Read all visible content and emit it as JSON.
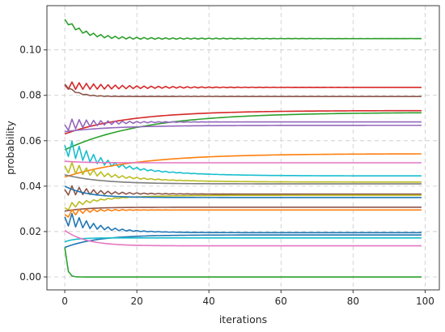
{
  "chart_data": {
    "type": "line",
    "title": "",
    "xlabel": "iterations",
    "ylabel": "probability",
    "xlim": [
      -4.95,
      103.95
    ],
    "ylim": [
      -0.0057,
      0.1195
    ],
    "x_ticks": [
      0,
      20,
      40,
      60,
      80,
      100
    ],
    "x_tick_labels": [
      "0",
      "20",
      "40",
      "60",
      "80",
      "100"
    ],
    "y_ticks": [
      0.0,
      0.02,
      0.04,
      0.06,
      0.08,
      0.1
    ],
    "y_tick_labels": [
      "0.00",
      "0.02",
      "0.04",
      "0.06",
      "0.08",
      "0.10"
    ],
    "grid": "dashed",
    "legend": "none",
    "x": {
      "start": 0,
      "end": 99,
      "step": 1
    },
    "series": [
      {
        "color": "#2ca02c",
        "start": 0.1135,
        "end": 0.105,
        "tau": 5,
        "osc": 0.0009,
        "oscDecay": 25
      },
      {
        "color": "#d62728",
        "start": 0.0845,
        "end": 0.0835,
        "tau": 8,
        "osc": 0.0018,
        "oscDecay": 18
      },
      {
        "color": "#8c564b",
        "start": 0.085,
        "end": 0.0795,
        "tau": 3,
        "osc": 0.0004,
        "oscDecay": 8
      },
      {
        "color": "#d62728",
        "start": 0.063,
        "end": 0.0733,
        "tau": 18,
        "osc": 0.0,
        "oscDecay": 1
      },
      {
        "color": "#2ca02c",
        "start": 0.056,
        "end": 0.0725,
        "tau": 22,
        "osc": 0.0,
        "oscDecay": 1
      },
      {
        "color": "#9467bd",
        "start": 0.067,
        "end": 0.0683,
        "tau": 10,
        "osc": 0.0028,
        "oscDecay": 10
      },
      {
        "color": "#9467bd",
        "start": 0.064,
        "end": 0.0668,
        "tau": 14,
        "osc": 0.0,
        "oscDecay": 1
      },
      {
        "color": "#17becf",
        "start": 0.058,
        "end": 0.0445,
        "tau": 14,
        "osc": 0.0045,
        "oscDecay": 9
      },
      {
        "color": "#ff7f0e",
        "start": 0.044,
        "end": 0.0543,
        "tau": 20,
        "osc": 0.0,
        "oscDecay": 1
      },
      {
        "color": "#e377c2",
        "start": 0.051,
        "end": 0.0503,
        "tau": 5,
        "osc": 0.0,
        "oscDecay": 1
      },
      {
        "color": "#bcbd22",
        "start": 0.049,
        "end": 0.0418,
        "tau": 14,
        "osc": 0.003,
        "oscDecay": 9
      },
      {
        "color": "#7f7f7f",
        "start": 0.045,
        "end": 0.041,
        "tau": 10,
        "osc": 0.0,
        "oscDecay": 1
      },
      {
        "color": "#8c564b",
        "start": 0.0385,
        "end": 0.0365,
        "tau": 10,
        "osc": 0.0025,
        "oscDecay": 9
      },
      {
        "color": "#bcbd22",
        "start": 0.0305,
        "end": 0.036,
        "tau": 10,
        "osc": 0.0018,
        "oscDecay": 6
      },
      {
        "color": "#1f77b4",
        "start": 0.04,
        "end": 0.035,
        "tau": 6,
        "osc": 0.0,
        "oscDecay": 1
      },
      {
        "color": "#8c564b",
        "start": 0.029,
        "end": 0.0307,
        "tau": 6,
        "osc": 0.0,
        "oscDecay": 1
      },
      {
        "color": "#ff7f0e",
        "start": 0.0275,
        "end": 0.0295,
        "tau": 4,
        "osc": 0.0018,
        "oscDecay": 7
      },
      {
        "color": "#1f77b4",
        "start": 0.0265,
        "end": 0.0195,
        "tau": 9,
        "osc": 0.0038,
        "oscDecay": 7
      },
      {
        "color": "#1f77b4",
        "start": 0.013,
        "end": 0.0185,
        "tau": 9,
        "osc": 0.0,
        "oscDecay": 1
      },
      {
        "color": "#17becf",
        "start": 0.0155,
        "end": 0.0172,
        "tau": 3,
        "osc": 0.0,
        "oscDecay": 1
      },
      {
        "color": "#e377c2",
        "start": 0.0205,
        "end": 0.0137,
        "tau": 6,
        "osc": 0.0,
        "oscDecay": 1
      },
      {
        "color": "#2ca02c",
        "start": 0.013,
        "end": 0.0,
        "tau": 0.6,
        "osc": 0.0,
        "oscDecay": 1
      }
    ]
  }
}
